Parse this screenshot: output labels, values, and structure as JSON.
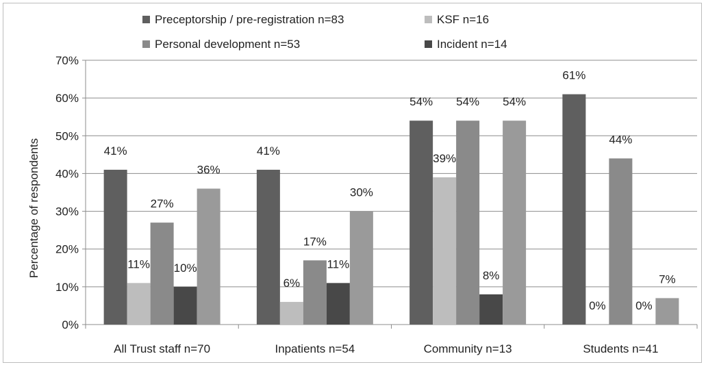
{
  "chart_data": {
    "type": "bar",
    "title": "",
    "xlabel": "",
    "ylabel": "Percentage of respondents",
    "ylim": [
      0,
      70
    ],
    "yticks": [
      0,
      10,
      20,
      30,
      40,
      50,
      60,
      70
    ],
    "ytick_labels": [
      "0%",
      "10%",
      "20%",
      "30%",
      "40%",
      "50%",
      "60%",
      "70%"
    ],
    "grid": true,
    "legend_position": "top",
    "categories": [
      "All Trust staff n=70",
      "Inpatients n=54",
      "Community n=13",
      "Students n=41"
    ],
    "series": [
      {
        "name": "Preceptorship /  pre-registration n=83",
        "color": "#5f5f5f",
        "values": [
          41,
          41,
          54,
          61
        ],
        "labels": [
          "41%",
          "41%",
          "54%",
          "61%"
        ]
      },
      {
        "name": "KSF n=16",
        "color": "#bdbdbd",
        "values": [
          11,
          6,
          39,
          0
        ],
        "labels": [
          "11%",
          "6%",
          "39%",
          "0%"
        ]
      },
      {
        "name": "Personal development n=53",
        "color": "#8a8a8a",
        "values": [
          27,
          17,
          54,
          44
        ],
        "labels": [
          "27%",
          "17%",
          "54%",
          "44%"
        ]
      },
      {
        "name": "Incident n=14",
        "color": "#484848",
        "values": [
          10,
          11,
          8,
          0
        ],
        "labels": [
          "10%",
          "11%",
          "8%",
          "0%"
        ]
      },
      {
        "name": "",
        "color": "#9a9a9a",
        "values": [
          36,
          30,
          54,
          7
        ],
        "labels": [
          "36%",
          "30%",
          "54%",
          "7%"
        ]
      }
    ]
  }
}
